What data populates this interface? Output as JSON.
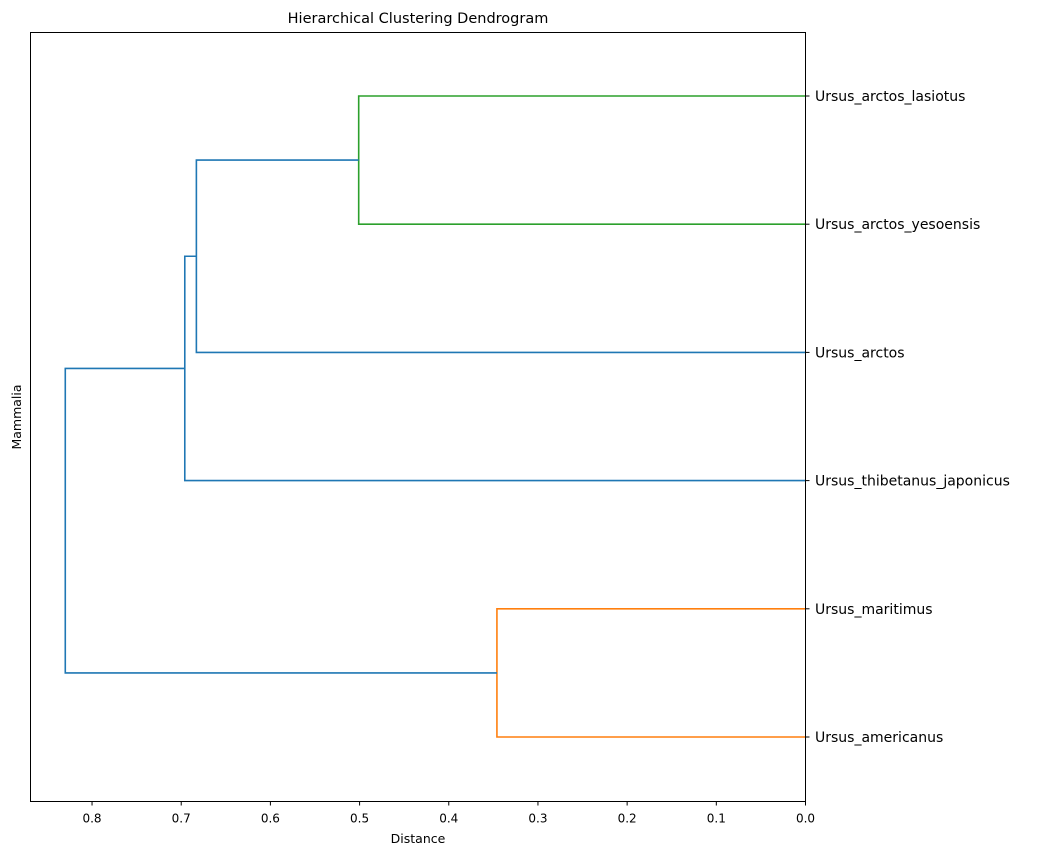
{
  "chart_data": {
    "type": "dendrogram",
    "orientation": "left",
    "title": "Hierarchical Clustering Dendrogram",
    "xlabel": "Distance",
    "ylabel": "Mammalia",
    "xlim": [
      0.869,
      0.0
    ],
    "xticks": [
      0.8,
      0.7,
      0.6,
      0.5,
      0.4,
      0.3,
      0.2,
      0.1,
      0.0
    ],
    "xtick_labels": [
      "0.8",
      "0.7",
      "0.6",
      "0.5",
      "0.4",
      "0.3",
      "0.2",
      "0.1",
      "0.0"
    ],
    "grid": false,
    "leaves": [
      "Ursus_arctos_lasiotus",
      "Ursus_arctos_yesoensis",
      "Ursus_arctos",
      "Ursus_thibetanus_japonicus",
      "Ursus_maritimus",
      "Ursus_americanus"
    ],
    "merges": [
      {
        "left": "Ursus_arctos_lasiotus",
        "right": "Ursus_arctos_yesoensis",
        "distance": 0.501,
        "color": "#2ca02c"
      },
      {
        "left": "Ursus_maritimus",
        "right": "Ursus_americanus",
        "distance": 0.346,
        "color": "#ff7f0e"
      },
      {
        "left": "cluster_0",
        "right": "Ursus_arctos",
        "distance": 0.683,
        "color": "#1f77b4"
      },
      {
        "left": "cluster_2",
        "right": "Ursus_thibetanus_japonicus",
        "distance": 0.696,
        "color": "#1f77b4"
      },
      {
        "left": "cluster_3",
        "right": "cluster_1",
        "distance": 0.83,
        "color": "#1f77b4"
      }
    ]
  }
}
